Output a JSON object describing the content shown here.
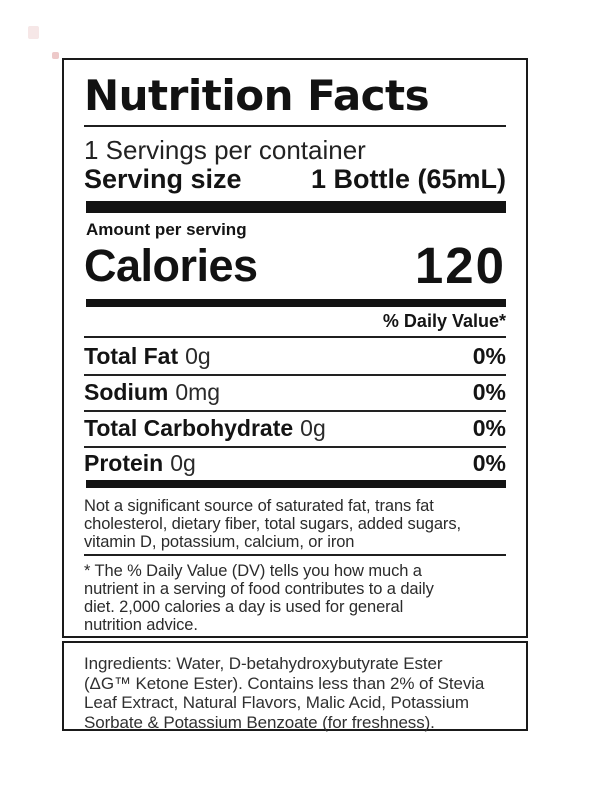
{
  "colors": {
    "ink": "#1a1a1a",
    "bar": "#131313",
    "background": "#ffffff"
  },
  "label": {
    "title": "Nutrition Facts",
    "servings_per_container": "1 Servings per container",
    "serving_size_label": "Serving size",
    "serving_size_value": "1 Bottle (65mL)",
    "amount_per_serving": "Amount per serving",
    "calories_label": "Calories",
    "calories_value": "120",
    "daily_value_header": "% Daily Value*",
    "nutrients": [
      {
        "name": "Total Fat",
        "amount": "0g",
        "dv": "0%"
      },
      {
        "name": "Sodium",
        "amount": "0mg",
        "dv": "0%"
      },
      {
        "name": "Total Carbohydrate",
        "amount": "0g",
        "dv": "0%"
      },
      {
        "name": "Protein",
        "amount": "0g",
        "dv": "0%"
      }
    ],
    "not_significant_lines": [
      "Not a significant source of saturated fat, trans fat",
      "cholesterol, dietary fiber, total sugars, added sugars,",
      "vitamin D, potassium, calcium, or iron"
    ],
    "dv_footnote_lines": [
      "* The % Daily Value (DV) tells you how much a",
      "nutrient in a serving of food contributes to a daily",
      "diet. 2,000 calories a day is used for general",
      "nutrition advice."
    ]
  },
  "ingredients": {
    "lines": [
      "Ingredients: Water, D-betahydroxybutyrate Ester",
      "(ΔG™ Ketone Ester). Contains less than 2% of Stevia",
      "Leaf Extract, Natural Flavors, Malic Acid, Potassium",
      "Sorbate & Potassium Benzoate (for freshness)."
    ]
  }
}
